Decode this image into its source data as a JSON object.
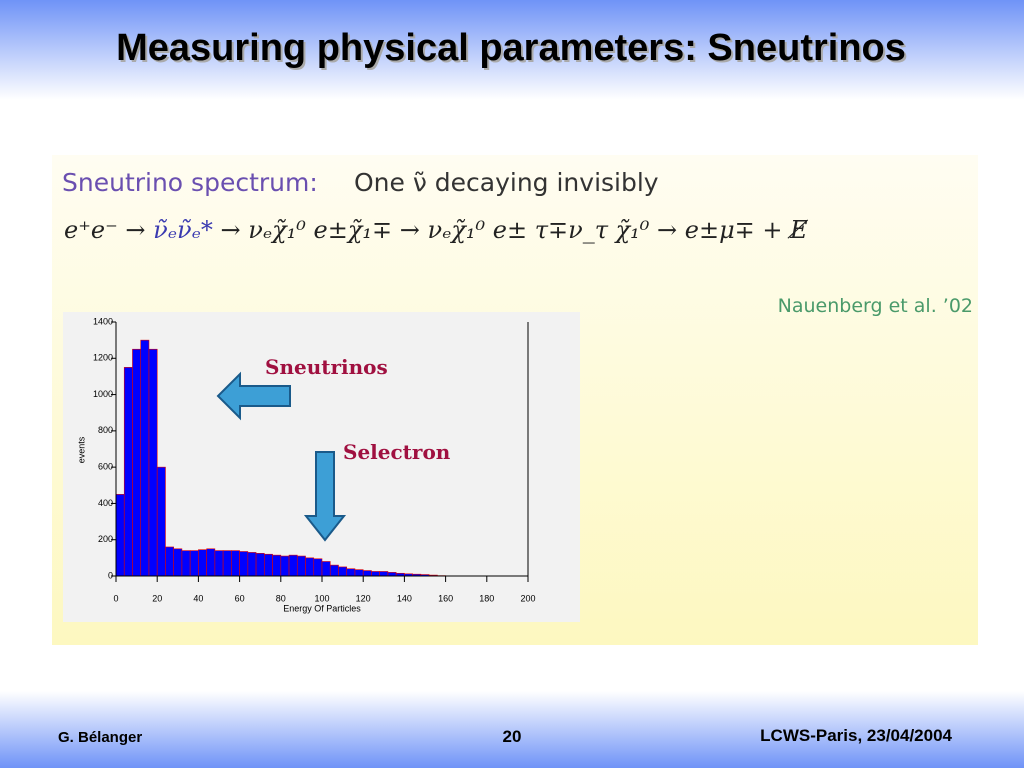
{
  "slide": {
    "title": "Measuring physical parameters: Sneutrinos",
    "heading": "Sneutrino spectrum:",
    "subheading": "One ν̃ decaying invisibly",
    "formula": [
      "e⁺e⁻ → ",
      "ν̃ₑν̃ₑ*",
      " → νₑχ̃₁⁰ e±χ̃₁∓ → νₑχ̃₁⁰ e± τ∓ν_τ χ̃₁⁰ → e±μ∓ + E̸"
    ],
    "reference": "Nauenberg et al. ’02",
    "footer": {
      "author": "G. Bélanger",
      "page": "20",
      "event": "LCWS-Paris, 23/04/2004"
    }
  },
  "chart_data": {
    "type": "histogram",
    "xlabel": "Energy Of Particles",
    "ylabel": "events",
    "annotations": [
      "Sneutrinos",
      "Selectron"
    ],
    "color": "#0000ff",
    "bins": [
      0,
      4,
      8,
      12,
      16,
      20,
      24,
      28,
      32,
      36,
      40,
      44,
      48,
      52,
      56,
      60,
      64,
      68,
      72,
      76,
      80,
      84,
      88,
      92,
      96,
      100,
      104,
      108,
      112,
      116,
      120,
      124,
      128,
      132,
      136,
      140,
      144,
      148,
      152,
      156,
      160
    ],
    "values": [
      450,
      1150,
      1250,
      1300,
      1250,
      600,
      160,
      150,
      140,
      140,
      145,
      150,
      140,
      140,
      140,
      135,
      130,
      125,
      120,
      115,
      110,
      115,
      110,
      100,
      95,
      80,
      60,
      50,
      40,
      35,
      30,
      25,
      25,
      20,
      15,
      12,
      10,
      8,
      5,
      2
    ],
    "xlim": [
      0,
      200
    ],
    "ylim": [
      0,
      1400
    ],
    "xticks": [
      0,
      20,
      40,
      60,
      80,
      100,
      120,
      140,
      160,
      180,
      200
    ],
    "yticks": [
      0,
      200,
      400,
      600,
      800,
      1000,
      1200,
      1400
    ]
  }
}
